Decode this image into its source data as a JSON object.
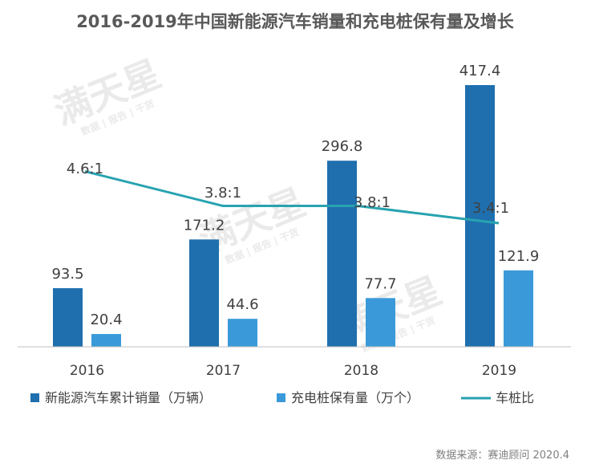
{
  "chart_data": {
    "type": "bar",
    "title": "2016-2019年中国新能源汽车销量和充电桩保有量及增长",
    "categories": [
      "2016",
      "2017",
      "2018",
      "2019"
    ],
    "series": [
      {
        "name": "新能源汽车累计销量（万辆）",
        "type": "bar",
        "color": "#1f6fae",
        "values": [
          93.5,
          171.2,
          296.8,
          417.4
        ],
        "labels": [
          "93.5",
          "171.2",
          "296.8",
          "417.4"
        ]
      },
      {
        "name": "充电桩保有量（万个）",
        "type": "bar",
        "color": "#3a9ad9",
        "values": [
          20.4,
          44.6,
          77.7,
          121.9
        ],
        "labels": [
          "20.4",
          "44.6",
          "77.7",
          "121.9"
        ]
      },
      {
        "name": "车桩比",
        "type": "line",
        "color": "#27a3b0",
        "values": [
          4.6,
          3.8,
          3.8,
          3.4
        ],
        "labels": [
          "4.6:1",
          "3.8:1",
          "3.8:1",
          "3.4:1"
        ]
      }
    ],
    "bar_ylim": [
      0,
      450
    ],
    "line_ylim": [
      0,
      8
    ],
    "grid": false,
    "legend_position": "bottom",
    "source": "数据来源：赛迪顾问 2020.4"
  },
  "watermark": {
    "big": "满天星",
    "small": "数据 | 报告 | 干货",
    "color": "#d9d9d9"
  }
}
